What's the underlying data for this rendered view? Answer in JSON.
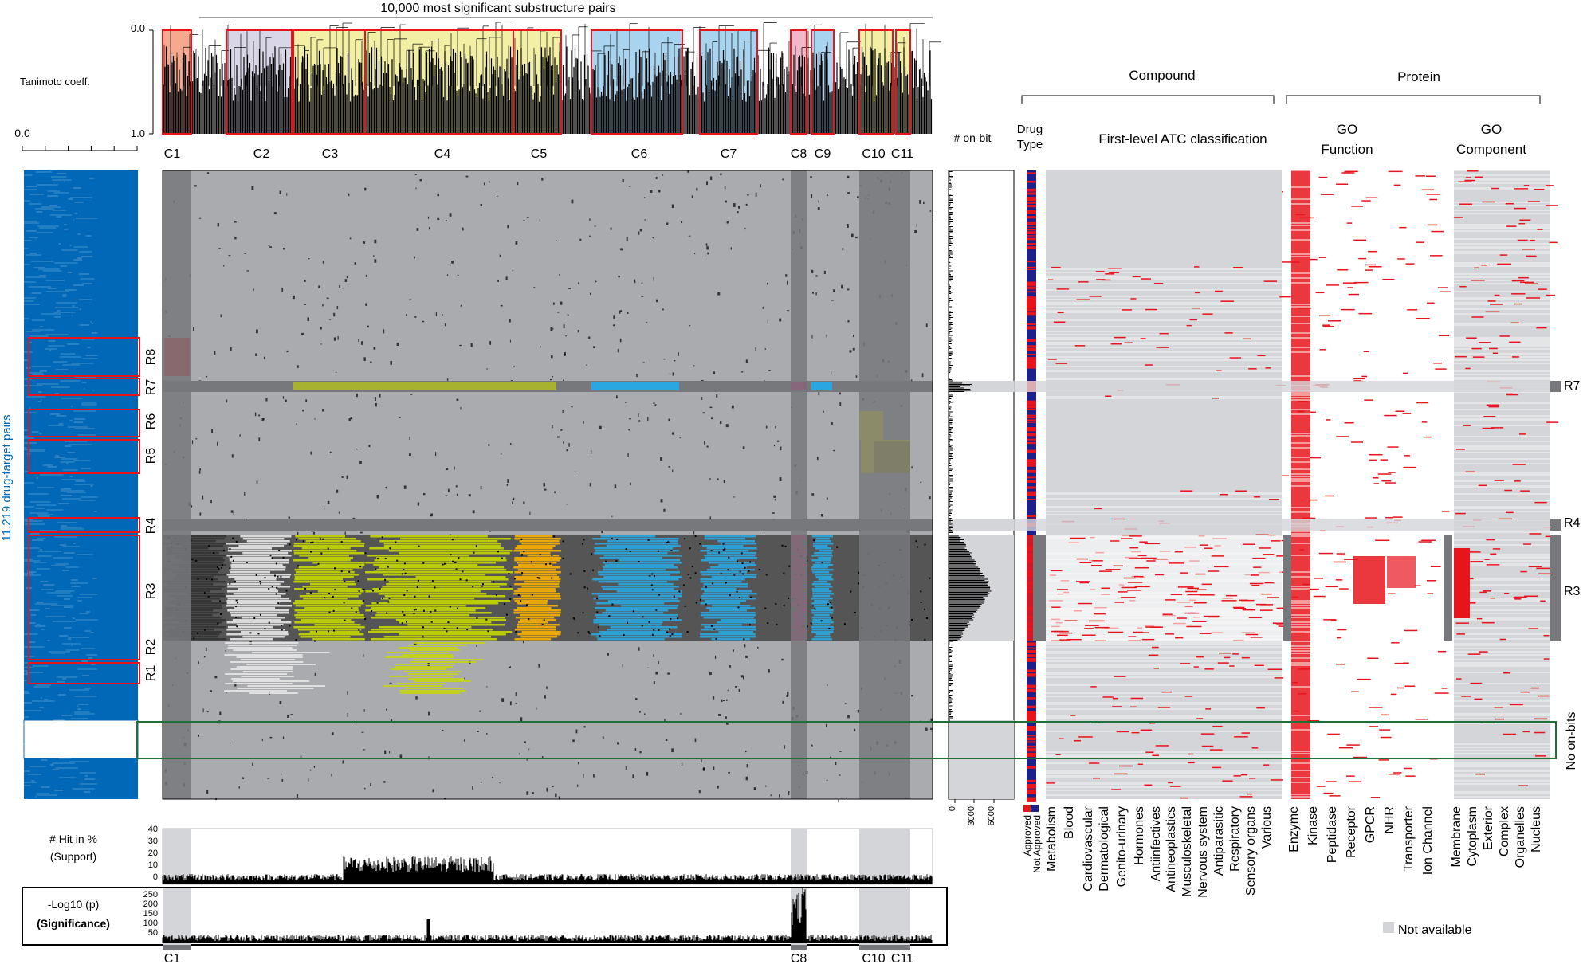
{
  "title": "10,000 most significant substructure pairs",
  "tanimoto": {
    "label": "Tanimoto coeff.",
    "ticks": [
      "0.0",
      "1.0"
    ]
  },
  "left_scale": {
    "tick": "0.0"
  },
  "drug_pairs_label": "11,219 drug-target pairs",
  "clusters": [
    "C1",
    "C2",
    "C3",
    "C4",
    "C5",
    "C6",
    "C7",
    "C8",
    "C9",
    "C10",
    "C11"
  ],
  "bottom_clusters": [
    "C1",
    "C8",
    "C10",
    "C11"
  ],
  "row_regions": [
    "R1",
    "R2",
    "R3",
    "R4",
    "R5",
    "R6",
    "R7",
    "R8"
  ],
  "right_regions": [
    "R7",
    "R4",
    "R3"
  ],
  "no_onbits": "No on-bits",
  "onbit": {
    "label": "# on-bit",
    "ticks": [
      "0",
      "3000",
      "6000"
    ]
  },
  "drug_type": {
    "label1": "Drug",
    "label2": "Type",
    "legend": [
      "Approved",
      "Not Approved"
    ]
  },
  "compound": {
    "header": "Compound",
    "sub": "First-level ATC classification",
    "columns": [
      "Metabolism",
      "Blood",
      "Cardiovascular",
      "Dermatological",
      "Genito-urinary",
      "Hormones",
      "Antiinfectives",
      "Antineoplastics",
      "Musculoskeletal",
      "Nervous system",
      "Antiparasitic",
      "Respiratory",
      "Sensory organs",
      "Various"
    ]
  },
  "protein": {
    "header": "Protein",
    "go_function": {
      "title1": "GO",
      "title2": "Function",
      "columns": [
        "Enzyme",
        "Kinase",
        "Peptidase",
        "Receptor",
        "GPCR",
        "NHR",
        "Transporter",
        "Ion Channel"
      ]
    },
    "go_component": {
      "title1": "GO",
      "title2": "Component",
      "columns": [
        "Membrane",
        "Cytoplasm",
        "Exterior",
        "Complex",
        "Organelles",
        "Nucleus"
      ]
    }
  },
  "hit_chart": {
    "label1": "# Hit in %",
    "label2": "(Support)",
    "ticks": [
      "40",
      "30",
      "20",
      "10",
      "0"
    ]
  },
  "sig_chart": {
    "label1": "-Log10 (p)",
    "label2": "(Significance)",
    "ticks": [
      "250",
      "200",
      "150",
      "100",
      "50"
    ]
  },
  "not_available": "Not available",
  "colors": {
    "red": "#e8141c",
    "yellow": "#ffed00",
    "lime": "#c8d800",
    "cyan": "#2aa7e1",
    "magenta": "#e6007e",
    "orange": "#f9b000",
    "blue": "#0068b7",
    "navy": "#1d2088",
    "gray": "#a9abae",
    "darkgray": "#77787b",
    "lightgray": "#d3d5d8"
  }
}
